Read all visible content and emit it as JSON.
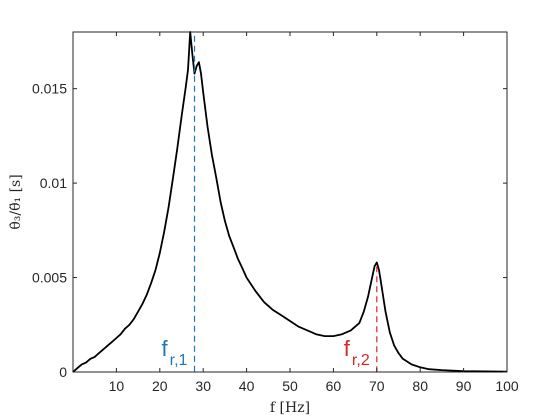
{
  "chart_data": {
    "type": "line",
    "title": "",
    "xlabel": "f [Hz]",
    "ylabel": "θ̇₃/θ̈₁ [s]",
    "xlim": [
      0,
      100
    ],
    "ylim": [
      0,
      0.018
    ],
    "xticks": [
      10,
      20,
      30,
      40,
      50,
      60,
      70,
      80,
      90,
      100
    ],
    "yticks": [
      0,
      0.005,
      0.01,
      0.015
    ],
    "ytick_labels": [
      "0",
      "0.005",
      "0.01",
      "0.015"
    ],
    "grid": false,
    "series": [
      {
        "color": "#000000",
        "x": [
          0,
          1,
          2,
          3,
          4,
          5,
          6,
          7,
          8,
          9,
          10,
          11,
          12,
          13,
          14,
          15,
          16,
          17,
          18,
          19,
          20,
          21,
          22,
          23,
          24,
          25,
          26,
          26.5,
          27,
          27.5,
          28,
          28.5,
          29,
          29.5,
          30,
          31,
          32,
          33,
          34,
          35,
          36,
          37,
          38,
          39,
          40,
          42,
          44,
          46,
          48,
          50,
          52,
          54,
          56,
          58,
          60,
          62,
          64,
          66,
          67,
          68,
          69,
          69.5,
          70,
          70.5,
          71,
          72,
          73,
          74,
          75,
          76,
          78,
          80,
          82,
          85,
          90,
          95,
          100
        ],
        "y": [
          0,
          0.0002,
          0.0004,
          0.0005,
          0.0007,
          0.0008,
          0.001,
          0.0012,
          0.0014,
          0.0016,
          0.0018,
          0.002,
          0.0023,
          0.0025,
          0.0028,
          0.0032,
          0.0036,
          0.0041,
          0.0047,
          0.0054,
          0.0063,
          0.0074,
          0.0087,
          0.0102,
          0.0118,
          0.0135,
          0.0151,
          0.016,
          0.018,
          0.0168,
          0.0158,
          0.0162,
          0.0164,
          0.0158,
          0.0148,
          0.013,
          0.0115,
          0.0103,
          0.009,
          0.008,
          0.0072,
          0.0066,
          0.006,
          0.0055,
          0.005,
          0.0043,
          0.0037,
          0.0033,
          0.003,
          0.0027,
          0.0024,
          0.0022,
          0.002,
          0.0019,
          0.0019,
          0.002,
          0.0022,
          0.0026,
          0.0032,
          0.004,
          0.0051,
          0.0056,
          0.0058,
          0.0054,
          0.0047,
          0.0032,
          0.0021,
          0.0014,
          0.001,
          0.0007,
          0.0004,
          0.00025,
          0.00015,
          0.0001,
          5e-05,
          3e-05,
          2e-05
        ]
      }
    ],
    "annotations": [
      {
        "main": "f",
        "sub": "r,1",
        "x": 28,
        "y_top": 0.0178,
        "color": "#1f77b4"
      },
      {
        "main": "f",
        "sub": "r,2",
        "x": 70,
        "y_top": 0.0056,
        "color": "#d62728"
      }
    ]
  }
}
